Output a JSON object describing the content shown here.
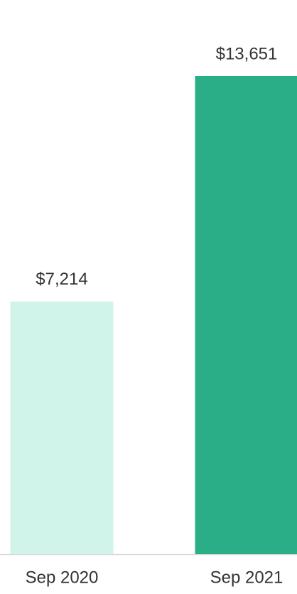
{
  "chart_data": {
    "type": "bar",
    "categories": [
      "Sep 2020",
      "Sep 2021"
    ],
    "values": [
      7214,
      13651
    ],
    "value_labels": [
      "$7,214",
      "$13,651"
    ],
    "colors": [
      "#d0f4e9",
      "#2aae87"
    ]
  }
}
